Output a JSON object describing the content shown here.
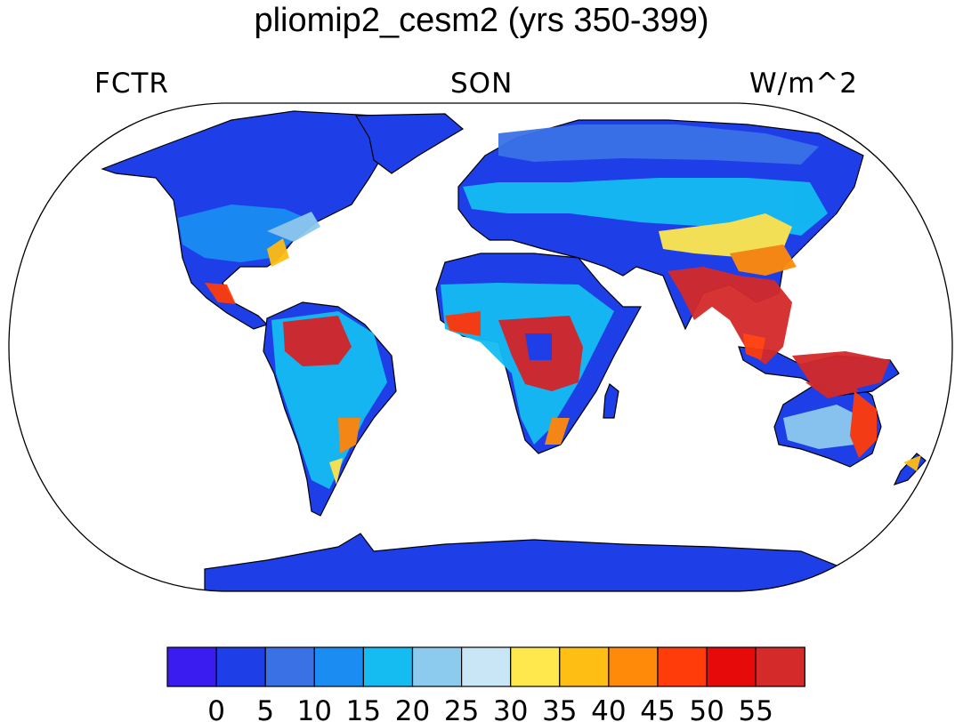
{
  "title": "pliomip2_cesm2 (yrs 350-399)",
  "left_label": "FCTR",
  "center_label": "SON",
  "right_label": "W/m^2",
  "projection": "Robinson",
  "colorbar": {
    "levels": [
      "0",
      "5",
      "10",
      "15",
      "20",
      "25",
      "30",
      "35",
      "40",
      "45",
      "50",
      "55"
    ],
    "colors": [
      "#3a1cf0",
      "#1e3ee8",
      "#3a72e6",
      "#1a8cf2",
      "#14bcf2",
      "#8ccaee",
      "#c8e6f6",
      "#ffe84e",
      "#ffbe14",
      "#ff8a0a",
      "#ff3c0a",
      "#e60a0a",
      "#d42a2a"
    ]
  },
  "colors": {
    "ocean": "#ffffff",
    "land_base": "#1e3ee8",
    "coast": "#000000"
  }
}
